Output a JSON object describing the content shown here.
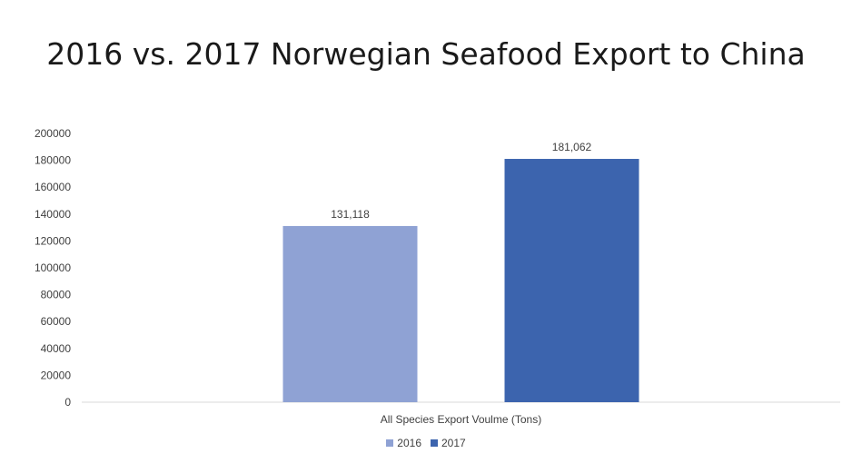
{
  "chart_data": {
    "type": "bar",
    "title": "2016 vs. 2017 Norwegian Seafood Export to China",
    "xlabel": "All Species Export Voulme (Tons)",
    "ylabel": "",
    "categories": [
      "All Species Export Voulme (Tons)"
    ],
    "series": [
      {
        "name": "2016",
        "values": [
          131118
        ],
        "label": "131,118",
        "color": "#8FA2D4"
      },
      {
        "name": "2017",
        "values": [
          181062
        ],
        "label": "181,062",
        "color": "#3C64AE"
      }
    ],
    "ylim": [
      0,
      200000
    ],
    "yticks": [
      0,
      20000,
      40000,
      60000,
      80000,
      100000,
      120000,
      140000,
      160000,
      180000,
      200000
    ],
    "ytick_labels": [
      "0",
      "20000",
      "40000",
      "60000",
      "80000",
      "100000",
      "120000",
      "140000",
      "160000",
      "180000",
      "200000"
    ],
    "grid": false,
    "legend": "bottom",
    "axis_color": "#d9d9d9"
  }
}
